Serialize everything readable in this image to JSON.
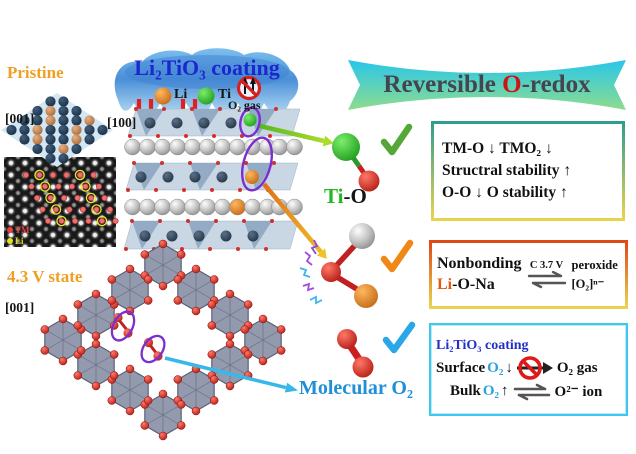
{
  "figure": {
    "labels": {
      "pristine": "Pristine",
      "dir_001_top": "[001]",
      "dir_100": "[100]",
      "state_43v": "4.3 V state",
      "dir_001_bottom": "[001]"
    },
    "coating": {
      "title": "Li₂TiO₃ coating",
      "legend_li": "Li",
      "legend_ti": "Ti",
      "legend_o2gas": "O₂ gas"
    },
    "stem": {
      "legend_tm": "TM",
      "legend_li": "Li"
    },
    "banner": {
      "pre": "Reversible ",
      "highlight": "O",
      "post": "-redox"
    },
    "molecules": {
      "tio_ti": "Ti",
      "tio_rest": "-O",
      "molecular_o2": "Molecular O₂"
    },
    "box_stability": {
      "line1": "TM-O ↓ TMO₂ ↓",
      "line2": "Structral stability ↑",
      "line3": "O-O ↓ O stability ↑"
    },
    "box_nonbonding": {
      "line1": "Nonbonding",
      "li": "Li",
      "line2_rest": "-O-Na",
      "condition": "C 3.7 V",
      "right1": "peroxide",
      "right2": "[O₂]ⁿ⁻"
    },
    "box_coating": {
      "title": "Li₂TiO₃ coating",
      "surface": "Surface ",
      "surface_o2": "O₂",
      "surface_arrow": " ↓",
      "o2_gas": "O₂ gas",
      "bulk": "Bulk ",
      "bulk_o2": "O₂",
      "bulk_arrow": " ↑",
      "o2_ion": "O²⁻ ion"
    },
    "colors": {
      "accent_blue_title": "#1c28cf",
      "gold_label": "#efa024",
      "banner_text": "#45454e",
      "banner_o": "#cf1212",
      "banner_gradient_top": "#28c6ea",
      "banner_gradient_bottom": "#8edc8e",
      "box1_border_top": "#2f9e8e",
      "box2_border_top": "#e04818",
      "box_border_bottom": "#e8d44e",
      "box3_border": "#3cc8ee",
      "check_green": "#55a838",
      "check_orange": "#f08818",
      "check_blue": "#28a8e8",
      "ellipse_purple": "#7a2fd0",
      "arrow_green": "#55b81e",
      "arrow_orange": "#e0701a",
      "arrow_cyan": "#38b8e8",
      "ti_green": "#22b822",
      "li_orange": "#e55a10",
      "molecular_o2_blue": "#1f8fd8",
      "prohibition_red": "#d82020"
    }
  }
}
